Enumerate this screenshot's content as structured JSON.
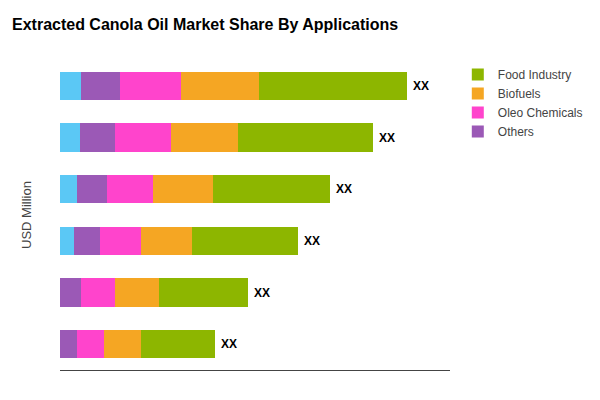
{
  "chart_data": {
    "type": "bar",
    "orientation": "horizontal",
    "stacked": true,
    "title": "Extracted Canola Oil Market Share By Applications",
    "ylabel": "USD Million",
    "categories": [
      null,
      null,
      null,
      null,
      null,
      null
    ],
    "series": [
      {
        "color": "#5BC8F5",
        "values": [
          0.3,
          0.28,
          0.24,
          0.2,
          0.0,
          0.0
        ]
      },
      {
        "name": "Others",
        "color": "#9B59B6",
        "values": [
          0.55,
          0.5,
          0.42,
          0.36,
          0.3,
          0.24
        ]
      },
      {
        "name": "Oleo Chemicals",
        "color": "#FF44CC",
        "values": [
          0.85,
          0.78,
          0.65,
          0.58,
          0.48,
          0.38
        ]
      },
      {
        "name": "Biofuels",
        "color": "#F5A623",
        "values": [
          1.1,
          0.95,
          0.85,
          0.72,
          0.62,
          0.52
        ]
      },
      {
        "name": "Food Industry",
        "color": "#8DB600",
        "values": [
          2.1,
          1.9,
          1.65,
          1.5,
          1.25,
          1.05
        ]
      }
    ],
    "annotations": [
      "XX",
      "XX",
      "XX",
      "XX",
      "XX",
      "XX"
    ],
    "xlim": [
      0,
      5.5
    ],
    "xticks": [],
    "tick_labels": false,
    "grid": false,
    "legend": "upper right"
  }
}
